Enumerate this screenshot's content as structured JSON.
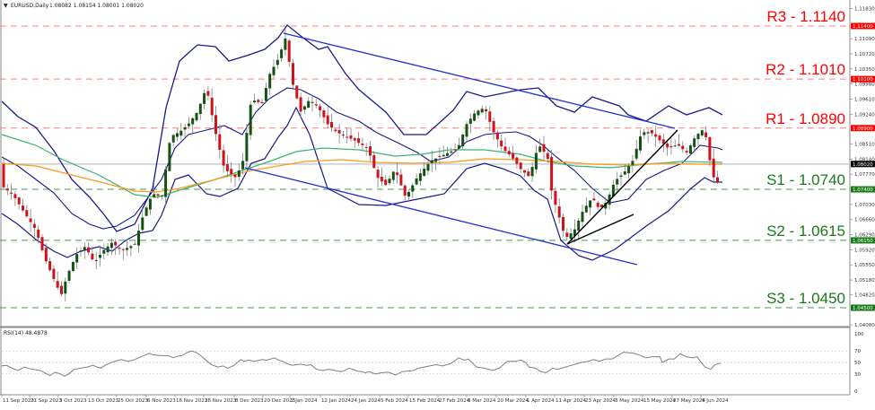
{
  "header": {
    "symbol": "EURUSD,Daily",
    "ohlc": "1.08082 1.08154 1.08001 1.08020",
    "marker": "▼"
  },
  "rsi_header": "RSI(14) 48.4878",
  "colors": {
    "resistance": "#ff0000",
    "resistance_line": "#ff8080",
    "support": "#1a7a1a",
    "support_line": "#4a9a4a",
    "bull_candle": "#145214",
    "bear_candle": "#d0121b",
    "wick": "#808080",
    "bollinger": "#1a1a8a",
    "channel": "#2233cc",
    "ma_green": "#3cb371",
    "ma_orange": "#ff9a1a",
    "trendline": "#000000",
    "current_price_bg": "#000000",
    "rsi_line": "#808080"
  },
  "levels": [
    {
      "name": "R3",
      "label": "R3 - 1.1140",
      "price": 1.114,
      "axis": "1.11400",
      "type": "resistance"
    },
    {
      "name": "R2",
      "label": "R2 - 1.1010",
      "price": 1.101,
      "axis": "1.10100",
      "type": "resistance"
    },
    {
      "name": "R1",
      "label": "R1 - 1.0890",
      "price": 1.089,
      "axis": "1.08900",
      "type": "resistance"
    },
    {
      "name": "S1",
      "label": "S1 - 1.0740",
      "price": 1.074,
      "axis": "1.07400",
      "type": "support"
    },
    {
      "name": "S2",
      "label": "S2 - 1.0615",
      "price": 1.0615,
      "axis": "1.06150",
      "type": "support"
    },
    {
      "name": "S3",
      "label": "S3 - 1.0450",
      "price": 1.045,
      "axis": "1.04500",
      "type": "support"
    }
  ],
  "current_price": {
    "price": 1.0802,
    "label": "1.08020"
  },
  "price_axis_ticks": [
    "1.11830",
    "1.11090",
    "1.10720",
    "1.10350",
    "1.09980",
    "1.09610",
    "1.09240",
    "1.08510",
    "1.08140",
    "1.07770",
    "1.07030",
    "1.06660",
    "1.06290",
    "1.05920",
    "1.05550",
    "1.05180",
    "1.04820",
    "1.04080"
  ],
  "rsi_axis_ticks": [
    "100",
    "70",
    "50",
    "30",
    "0"
  ],
  "date_ticks": [
    "11 Sep 2023",
    "21 Sep 2023",
    "3 Oct 2023",
    "13 Oct 2023",
    "25 Oct 2023",
    "6 Nov 2023",
    "16 Nov 2023",
    "28 Nov 2023",
    "8 Dec 2023",
    "20 Dec 2023",
    "2 Jan 2024",
    "12 Jan 2024",
    "24 Jan 2024",
    "5 Feb 2024",
    "15 Feb 2024",
    "27 Feb 2024",
    "8 Mar 2024",
    "20 Mar 2024",
    "1 Apr 2024",
    "11 Apr 2024",
    "23 Apr 2024",
    "3 May 2024",
    "15 May 2024",
    "27 May 2024",
    "6 Jun 2024"
  ],
  "chart_data": {
    "type": "line",
    "title": "EURUSD,Daily",
    "subtitle": "O 1.08082 H 1.08154 L 1.08001 C 1.08020",
    "xlabel": "",
    "ylabel": "",
    "ylim": [
      1.0408,
      1.1183
    ],
    "grid": false,
    "legend_position": "none",
    "x": [
      "11 Sep 2023",
      "21 Sep 2023",
      "3 Oct 2023",
      "13 Oct 2023",
      "25 Oct 2023",
      "6 Nov 2023",
      "16 Nov 2023",
      "28 Nov 2023",
      "8 Dec 2023",
      "20 Dec 2023",
      "2 Jan 2024",
      "12 Jan 2024",
      "24 Jan 2024",
      "5 Feb 2024",
      "15 Feb 2024",
      "27 Feb 2024",
      "8 Mar 2024",
      "20 Mar 2024",
      "1 Apr 2024",
      "11 Apr 2024",
      "23 Apr 2024",
      "3 May 2024",
      "15 May 2024",
      "27 May 2024",
      "6 Jun 2024"
    ],
    "series": [
      {
        "name": "EURUSD close (approx.)",
        "values": [
          1.073,
          1.065,
          1.05,
          1.056,
          1.058,
          1.07,
          1.088,
          1.097,
          1.077,
          1.096,
          1.102,
          1.095,
          1.086,
          1.077,
          1.078,
          1.084,
          1.094,
          1.087,
          1.078,
          1.064,
          1.07,
          1.076,
          1.087,
          1.086,
          1.0802
        ]
      },
      {
        "name": "RSI(14)",
        "values": [
          43,
          38,
          32,
          46,
          48,
          55,
          68,
          70,
          50,
          66,
          72,
          55,
          48,
          35,
          42,
          50,
          62,
          52,
          44,
          31,
          40,
          50,
          66,
          60,
          48.4878
        ]
      }
    ],
    "annotations": [
      "R3 - 1.1140",
      "R2 - 1.1010",
      "R1 - 1.0890",
      "S1 - 1.0740",
      "S2 - 1.0615",
      "S3 - 1.0450",
      "Descending channel (Dec 2023 - May 2024)",
      "Ascending trendlines from 16 Apr 2024 low",
      "Bollinger Bands, moving averages (green, orange)"
    ],
    "rsi": {
      "period": 14,
      "value": 48.4878,
      "levels": [
        70,
        50,
        30
      ],
      "ylim": [
        0,
        100
      ]
    }
  }
}
